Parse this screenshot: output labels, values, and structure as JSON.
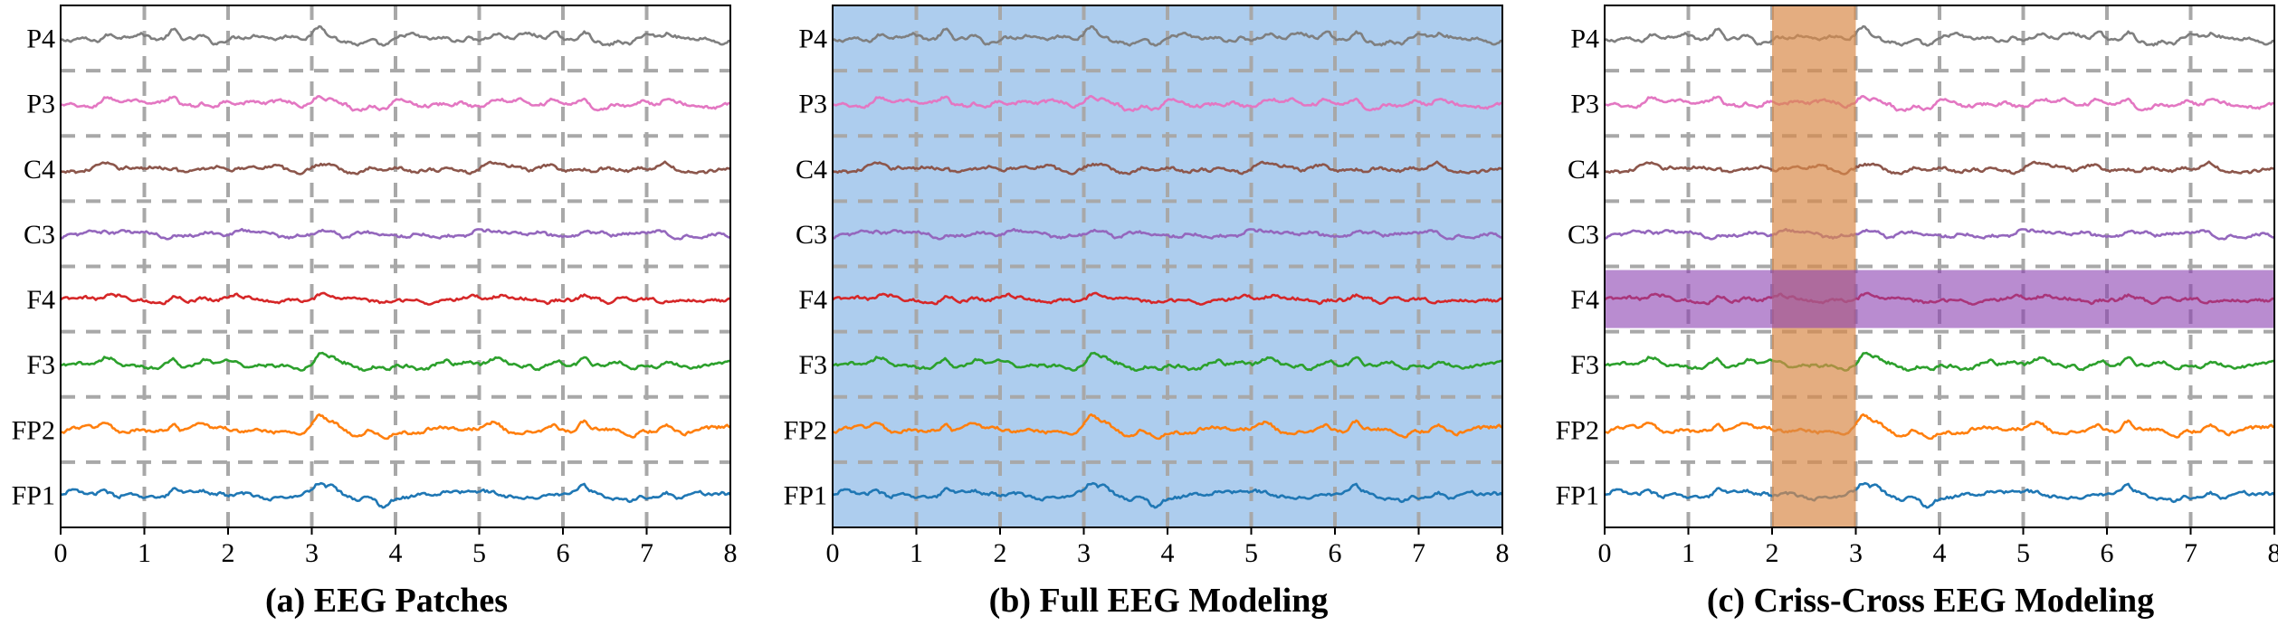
{
  "chart_data": [
    {
      "type": "line",
      "title": "(a) EEG Patches",
      "highlight": "none",
      "x_ticks": [
        "0",
        "1",
        "2",
        "3",
        "4",
        "5",
        "6",
        "7",
        "8"
      ],
      "xlim": [
        0,
        8
      ],
      "channels": [
        "P4",
        "P3",
        "C4",
        "C3",
        "F4",
        "F3",
        "FP2",
        "FP1"
      ],
      "grid": "dashed patch grid"
    },
    {
      "type": "line",
      "title": "(b) Full EEG Modeling",
      "highlight": "full",
      "x_ticks": [
        "0",
        "1",
        "2",
        "3",
        "4",
        "5",
        "6",
        "7",
        "8"
      ],
      "xlim": [
        0,
        8
      ],
      "channels": [
        "P4",
        "P3",
        "C4",
        "C3",
        "F4",
        "F3",
        "FP2",
        "FP1"
      ],
      "grid": "dashed patch grid"
    },
    {
      "type": "line",
      "title": "(c) Criss-Cross EEG Modeling",
      "highlight": "criss-cross",
      "highlight_time_range": [
        2,
        3
      ],
      "highlight_channel": "F4",
      "x_ticks": [
        "0",
        "1",
        "2",
        "3",
        "4",
        "5",
        "6",
        "7",
        "8"
      ],
      "xlim": [
        0,
        8
      ],
      "channels": [
        "P4",
        "P3",
        "C4",
        "C3",
        "F4",
        "F3",
        "FP2",
        "FP1"
      ],
      "grid": "dashed patch grid"
    }
  ],
  "colors": {
    "P4": "#7f7f7f",
    "P3": "#e377c2",
    "C4": "#8c564b",
    "C3": "#9467bd",
    "F4": "#d62728",
    "F3": "#2ca02c",
    "FP2": "#ff7f0e",
    "FP1": "#1f77b4",
    "full_highlight": "#4a90d9",
    "time_highlight": "#d98a4a",
    "channel_highlight": "#8a3fb0",
    "grid": "#a8a8a8"
  }
}
